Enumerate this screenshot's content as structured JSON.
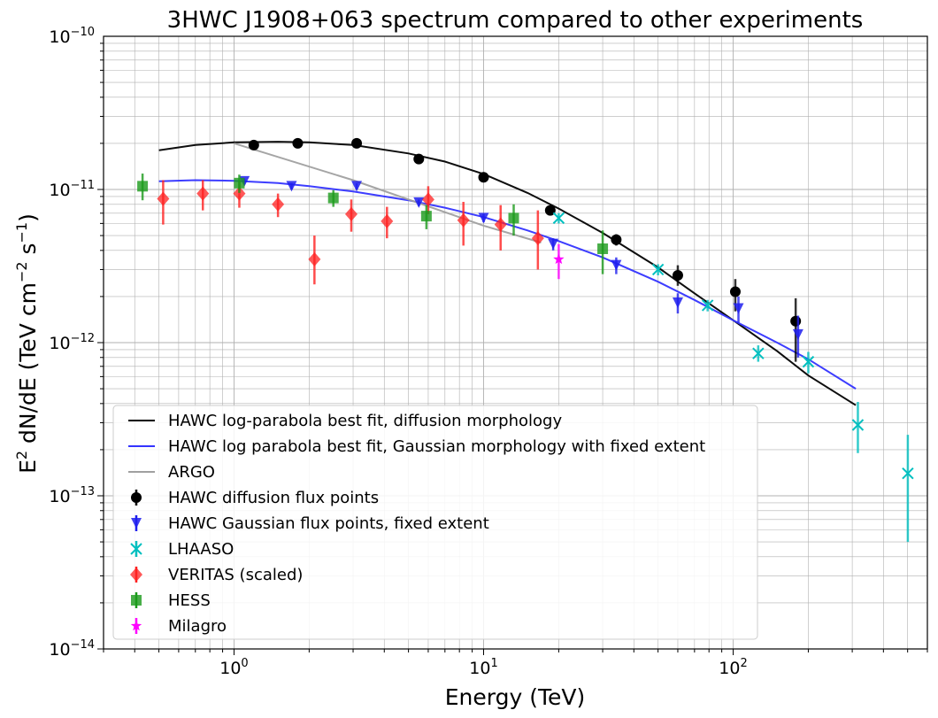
{
  "chart_data": {
    "type": "scatter",
    "title": "3HWC J1908+063 spectrum compared to other experiments",
    "xlabel": "Energy (TeV)",
    "ylabel": {
      "base": "E",
      "sup1": "2",
      "mid": " dN/dE (TeV cm",
      "sup2": "−2",
      "gap": " s",
      "sup3": "−1",
      "end": ")"
    },
    "xscale": "log",
    "yscale": "log",
    "xlim": [
      0.3,
      600
    ],
    "ylim": [
      1e-14,
      1e-10
    ],
    "x_ticks": [
      {
        "base": "10",
        "exp": "0",
        "value": 1
      },
      {
        "base": "10",
        "exp": "1",
        "value": 10
      },
      {
        "base": "10",
        "exp": "2",
        "value": 100
      }
    ],
    "y_ticks": [
      {
        "base": "10",
        "exp": "−14",
        "value": 1e-14
      },
      {
        "base": "10",
        "exp": "−13",
        "value": 1e-13
      },
      {
        "base": "10",
        "exp": "−12",
        "value": 1e-12
      },
      {
        "base": "10",
        "exp": "−11",
        "value": 1e-11
      },
      {
        "base": "10",
        "exp": "−10",
        "value": 1e-10
      }
    ],
    "grid": true,
    "legend_position": "lower-left",
    "series": [
      {
        "name": "HAWC log-parabola best fit, diffusion morphology",
        "kind": "line",
        "color": "#000000",
        "x": [
          0.5,
          0.7,
          1,
          1.5,
          2,
          3,
          5,
          7,
          10,
          15,
          20,
          30,
          50,
          70,
          100,
          150,
          200,
          310
        ],
        "y": [
          1.8e-11,
          1.95e-11,
          2.03e-11,
          2.05e-11,
          2.03e-11,
          1.95e-11,
          1.72e-11,
          1.52e-11,
          1.26e-11,
          9.5e-12,
          7.5e-12,
          5.2e-12,
          3.1e-12,
          2.1e-12,
          1.4e-12,
          8.8e-13,
          6.1e-13,
          3.9e-13
        ]
      },
      {
        "name": "HAWC log parabola best fit, Gaussian morphology with fixed extent",
        "kind": "line",
        "color": "#3333ff",
        "x": [
          0.5,
          0.7,
          1,
          1.5,
          2,
          3,
          5,
          7,
          10,
          15,
          20,
          30,
          50,
          70,
          100,
          150,
          200,
          310
        ],
        "y": [
          1.13e-11,
          1.15e-11,
          1.14e-11,
          1.1e-11,
          1.05e-11,
          9.7e-12,
          8.5e-12,
          7.6e-12,
          6.6e-12,
          5.4e-12,
          4.6e-12,
          3.6e-12,
          2.5e-12,
          1.9e-12,
          1.4e-12,
          1e-12,
          7.8e-13,
          5e-13
        ]
      },
      {
        "name": "ARGO",
        "kind": "line",
        "color": "#a0a0a0",
        "x": [
          1,
          3,
          10,
          17
        ],
        "y": [
          2e-11,
          1.15e-11,
          5.8e-12,
          4.5e-12
        ]
      },
      {
        "name": "HAWC diffusion flux points",
        "kind": "errorbar",
        "marker": "circle",
        "color": "#000000",
        "x": [
          1.2,
          1.8,
          3.1,
          5.5,
          10,
          18.5,
          34,
          60,
          102,
          178
        ],
        "y": [
          1.95e-11,
          2e-11,
          2e-11,
          1.58e-11,
          1.2e-11,
          7.3e-12,
          4.7e-12,
          2.75e-12,
          2.15e-12,
          1.38e-12
        ],
        "yerr_low": [
          1.85e-11,
          1.9e-11,
          1.9e-11,
          1.5e-11,
          1.14e-11,
          6.8e-12,
          4.3e-12,
          2.35e-12,
          1.6e-12,
          7.5e-13
        ],
        "yerr_high": [
          2.05e-11,
          2.1e-11,
          2.1e-11,
          1.66e-11,
          1.26e-11,
          7.8e-12,
          5.1e-12,
          3.2e-12,
          2.6e-12,
          1.95e-12
        ]
      },
      {
        "name": "HAWC Gaussian flux points, fixed extent",
        "kind": "errorbar",
        "marker": "triangle-down",
        "color": "#1f1fee",
        "x": [
          1.1,
          1.7,
          3.1,
          5.5,
          10,
          19,
          34,
          60,
          105,
          182
        ],
        "y": [
          1.13e-11,
          1.05e-11,
          1.05e-11,
          8.2e-12,
          6.5e-12,
          4.4e-12,
          3.2e-12,
          1.82e-12,
          1.67e-12,
          1.13e-12
        ],
        "yerr_low": [
          1.08e-11,
          1e-11,
          1e-11,
          7.8e-12,
          6.1e-12,
          4e-12,
          2.8e-12,
          1.55e-12,
          1.35e-12,
          8e-13
        ],
        "yerr_high": [
          1.18e-11,
          1.1e-11,
          1.1e-11,
          8.6e-12,
          6.9e-12,
          4.8e-12,
          3.6e-12,
          2.1e-12,
          2e-12,
          1.5e-12
        ]
      },
      {
        "name": "LHAASO",
        "kind": "errorbar",
        "marker": "x",
        "color": "#00bfbf",
        "x": [
          20,
          50,
          79,
          126,
          200,
          316,
          501
        ],
        "y": [
          6.5e-12,
          3e-12,
          1.75e-12,
          8.5e-13,
          7.5e-13,
          2.9e-13,
          1.4e-13
        ],
        "yerr_low": [
          6e-12,
          2.75e-12,
          1.6e-12,
          7.5e-13,
          6.3e-13,
          1.9e-13,
          5e-14
        ],
        "yerr_high": [
          7e-12,
          3.25e-12,
          1.9e-12,
          9.6e-13,
          8.7e-13,
          4.1e-13,
          2.5e-13
        ]
      },
      {
        "name": "VERITAS (scaled)",
        "kind": "errorbar",
        "marker": "diamond",
        "color": "#ff2020",
        "x": [
          0.52,
          0.75,
          1.05,
          1.5,
          2.1,
          2.95,
          4.1,
          6,
          8.3,
          11.7,
          16.5
        ],
        "y": [
          8.7e-12,
          9.4e-12,
          9.4e-12,
          8e-12,
          3.5e-12,
          6.9e-12,
          6.2e-12,
          8.6e-12,
          6.3e-12,
          5.9e-12,
          4.8e-12
        ],
        "yerr_low": [
          5.9e-12,
          7.3e-12,
          7.6e-12,
          6.6e-12,
          2.4e-12,
          5.3e-12,
          4.8e-12,
          6.9e-12,
          4.3e-12,
          4e-12,
          3e-12
        ],
        "yerr_high": [
          1.15e-11,
          1.15e-11,
          1.12e-11,
          9.4e-12,
          5e-12,
          8.6e-12,
          7.7e-12,
          1.05e-11,
          8.3e-12,
          7.9e-12,
          7.3e-12
        ]
      },
      {
        "name": "HESS",
        "kind": "errorbar",
        "marker": "square",
        "color": "#1a9a1a",
        "x": [
          0.43,
          1.05,
          2.5,
          5.9,
          13.2,
          30
        ],
        "y": [
          1.05e-11,
          1.1e-11,
          8.8e-12,
          6.7e-12,
          6.5e-12,
          4.1e-12
        ],
        "yerr_low": [
          8.5e-12,
          9.5e-12,
          7.7e-12,
          5.5e-12,
          5e-12,
          2.8e-12
        ],
        "yerr_high": [
          1.27e-11,
          1.25e-11,
          9.9e-12,
          7.9e-12,
          8e-12,
          5.4e-12
        ]
      },
      {
        "name": "Milagro",
        "kind": "errorbar",
        "marker": "star",
        "color": "#ff00ff",
        "x": [
          20
        ],
        "y": [
          3.5e-12
        ],
        "yerr_low": [
          2.6e-12
        ],
        "yerr_high": [
          4.4e-12
        ]
      }
    ]
  }
}
